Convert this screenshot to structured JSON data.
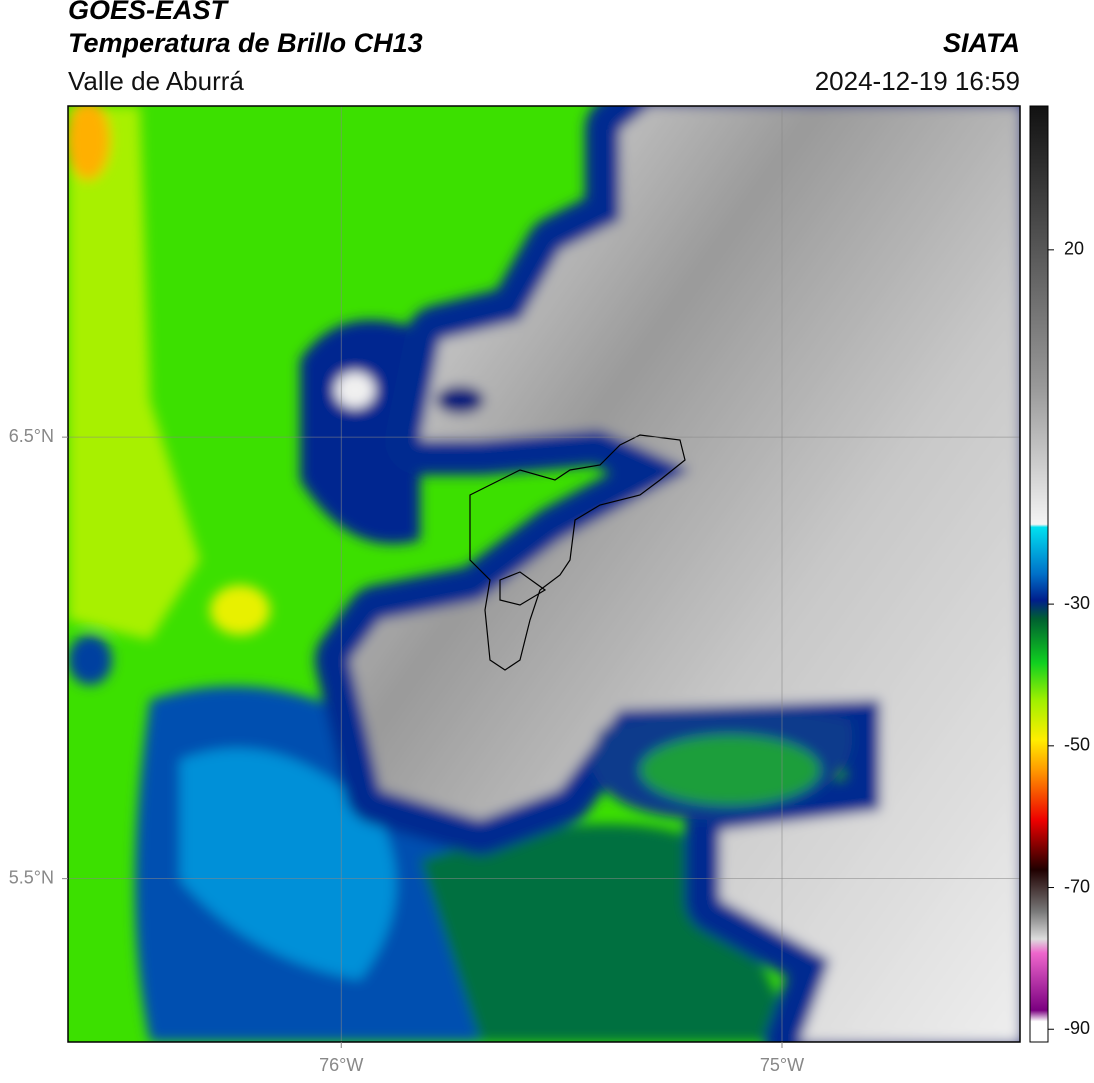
{
  "header": {
    "title": "GOES-EAST",
    "subtitle": "Temperatura de Brillo CH13",
    "region": "Valle de Aburrá",
    "source": "SIATA",
    "datetime": "2024-12-19 16:59"
  },
  "map": {
    "xlim": [
      -76.62,
      -74.46
    ],
    "ylim": [
      5.13,
      7.25
    ],
    "xticks": [
      {
        "value": -76,
        "label": "76°W"
      },
      {
        "value": -75,
        "label": "75°W"
      }
    ],
    "yticks": [
      {
        "value": 6.5,
        "label": "6.5°N"
      },
      {
        "value": 5.5,
        "label": "5.5°N"
      }
    ],
    "grid": true
  },
  "colorbar": {
    "lim": [
      -91.8,
      40.3
    ],
    "ticks": [
      20,
      -30,
      -50,
      -70,
      -90
    ]
  }
}
